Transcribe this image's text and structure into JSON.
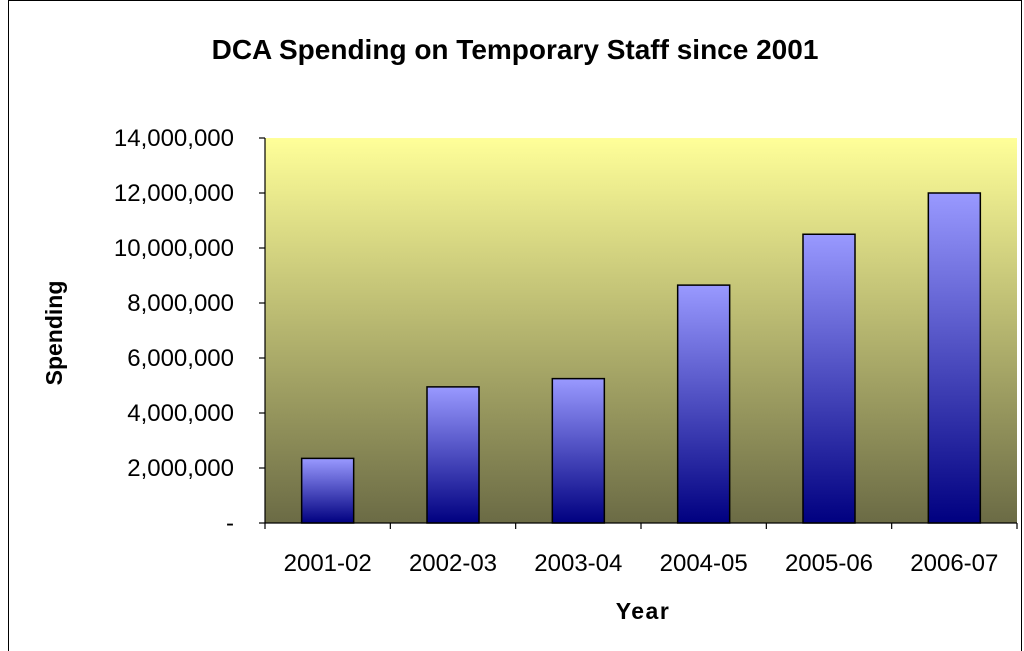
{
  "chart_data": {
    "type": "bar",
    "title": "DCA Spending on Temporary Staff since 2001",
    "xlabel": "Year",
    "ylabel": "Spending",
    "categories": [
      "2001-02",
      "2002-03",
      "2003-04",
      "2004-05",
      "2005-06",
      "2006-07"
    ],
    "values": [
      2350000,
      4950000,
      5250000,
      8650000,
      10500000,
      12000000
    ],
    "ylim": [
      0,
      14000000
    ],
    "yticks": [
      0,
      2000000,
      4000000,
      6000000,
      8000000,
      10000000,
      12000000,
      14000000
    ],
    "ytick_labels": [
      "-",
      "2,000,000",
      "4,000,000",
      "6,000,000",
      "8,000,000",
      "10,000,000",
      "12,000,000",
      "14,000,000"
    ],
    "grid": false,
    "legend": "none",
    "colors": {
      "plot_bg_top": "#ffff99",
      "plot_bg_bottom": "#6b6b45",
      "bar_top": "#9999ff",
      "bar_bottom": "#000080"
    }
  }
}
